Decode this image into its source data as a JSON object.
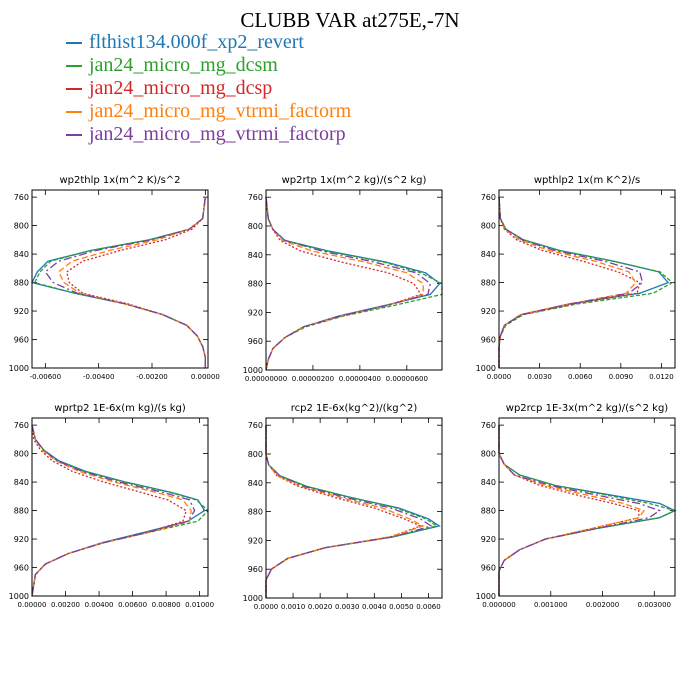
{
  "title": "CLUBB VAR at275E,-7N",
  "legend": [
    {
      "label": "flthist134.000f_xp2_revert",
      "color": "#1f77b4"
    },
    {
      "label": "jan24_micro_mg_dcsm",
      "color": "#2ca02c"
    },
    {
      "label": "jan24_micro_mg_dcsp",
      "color": "#d62728"
    },
    {
      "label": "jan24_micro_mg_vtrmi_factorm",
      "color": "#ff7f0e"
    },
    {
      "label": "jan24_micro_mg_vtrmi_factorp",
      "color": "#7b3f9e"
    }
  ],
  "chart_data": [
    {
      "type": "line",
      "title": "wp2thlp   1x(m^2 K)/s^2",
      "ylim": [
        1000,
        750
      ],
      "yticks": [
        760,
        800,
        840,
        880,
        920,
        960,
        1000
      ],
      "xlim": [
        -0.0065,
        0.0001
      ],
      "xticks": [
        -0.006,
        -0.004,
        -0.002,
        0.0
      ],
      "xtick_labels": [
        "-0.00600",
        "-0.00400",
        "-0.00200",
        "0.00000"
      ],
      "y": [
        760,
        790,
        805,
        820,
        835,
        850,
        865,
        880,
        895,
        910,
        925,
        940,
        955,
        970,
        985,
        1000
      ],
      "series": [
        {
          "name": "flthist134.000f_xp2_revert",
          "color": "#1f77b4",
          "dash": "",
          "values": [
            0.0,
            -0.0001,
            -0.0006,
            -0.0021,
            -0.0043,
            -0.0059,
            -0.0063,
            -0.0065,
            -0.0049,
            -0.003,
            -0.0016,
            -0.0007,
            -0.0003,
            -0.0001,
            0.0,
            0.0
          ]
        },
        {
          "name": "jan24_micro_mg_dcsm",
          "color": "#2ca02c",
          "dash": "4,2",
          "values": [
            0.0,
            -0.0001,
            -0.0006,
            -0.0021,
            -0.0043,
            -0.0058,
            -0.0062,
            -0.0064,
            -0.0049,
            -0.003,
            -0.0016,
            -0.0007,
            -0.0003,
            -0.0001,
            0.0,
            0.0
          ]
        },
        {
          "name": "jan24_micro_mg_dcsp",
          "color": "#d62728",
          "dash": "2,2",
          "values": [
            0.0,
            -0.0001,
            -0.0005,
            -0.0015,
            -0.0032,
            -0.0046,
            -0.0052,
            -0.0051,
            -0.0046,
            -0.0029,
            -0.0016,
            -0.0007,
            -0.0003,
            -0.0001,
            0.0,
            0.0
          ]
        },
        {
          "name": "jan24_micro_mg_vtrmi_factorm",
          "color": "#ff7f0e",
          "dash": "6,3",
          "values": [
            0.0,
            -0.0001,
            -0.0006,
            -0.0018,
            -0.0036,
            -0.005,
            -0.0055,
            -0.0053,
            -0.0047,
            -0.003,
            -0.0016,
            -0.0007,
            -0.0003,
            -0.0001,
            0.0,
            0.0
          ]
        },
        {
          "name": "jan24_micro_mg_vtrmi_factorp",
          "color": "#7b3f9e",
          "dash": "8,3,2,3",
          "values": [
            0.0,
            -0.0001,
            -0.0006,
            -0.002,
            -0.0041,
            -0.0055,
            -0.006,
            -0.0057,
            -0.0048,
            -0.003,
            -0.0016,
            -0.0007,
            -0.0003,
            -0.0001,
            0.0,
            0.0
          ]
        }
      ]
    },
    {
      "type": "line",
      "title": "wp2rtp   1x(m^2 kg)/(s^2 kg)",
      "ylim": [
        1000,
        750
      ],
      "yticks": [
        760,
        800,
        840,
        880,
        920,
        960,
        1000
      ],
      "xlim": [
        0.0,
        7.5e-06
      ],
      "xticks": [
        0.0,
        2e-06,
        4e-06,
        6e-06
      ],
      "xtick_labels": [
        "0.00000000",
        "0.00000200",
        "0.00000400",
        "0.00000600"
      ],
      "y": [
        760,
        790,
        805,
        820,
        835,
        850,
        865,
        880,
        895,
        910,
        925,
        940,
        955,
        970,
        985,
        1000
      ],
      "series": [
        {
          "name": "flthist134.000f_xp2_revert",
          "color": "#1f77b4",
          "dash": "",
          "values": [
            0.0,
            1e-07,
            3e-07,
            8e-07,
            2.7e-06,
            5.1e-06,
            6.8e-06,
            7.4e-06,
            7e-06,
            5.1e-06,
            3.1e-06,
            1.6e-06,
            8e-07,
            3e-07,
            1e-07,
            0.0
          ]
        },
        {
          "name": "jan24_micro_mg_dcsm",
          "color": "#2ca02c",
          "dash": "4,2",
          "values": [
            0.0,
            1e-07,
            3e-07,
            8e-07,
            2.6e-06,
            5e-06,
            6.6e-06,
            7.5e-06,
            7.5e-06,
            5.5e-06,
            3.3e-06,
            1.7e-06,
            8e-07,
            3e-07,
            1e-07,
            0.0
          ]
        },
        {
          "name": "jan24_micro_mg_dcsp",
          "color": "#d62728",
          "dash": "2,2",
          "values": [
            0.0,
            1e-07,
            3e-07,
            6e-07,
            1.5e-06,
            3.2e-06,
            5.2e-06,
            6.3e-06,
            6.6e-06,
            5.2e-06,
            3.2e-06,
            1.6e-06,
            8e-07,
            3e-07,
            1e-07,
            0.0
          ]
        },
        {
          "name": "jan24_micro_mg_vtrmi_factorm",
          "color": "#ff7f0e",
          "dash": "6,3",
          "values": [
            0.0,
            1e-07,
            3e-07,
            7e-07,
            2e-06,
            4.2e-06,
            6e-06,
            6.7e-06,
            6.7e-06,
            5.2e-06,
            3.2e-06,
            1.6e-06,
            8e-07,
            3e-07,
            1e-07,
            0.0
          ]
        },
        {
          "name": "jan24_micro_mg_vtrmi_factorp",
          "color": "#7b3f9e",
          "dash": "8,3,2,3",
          "values": [
            0.0,
            1e-07,
            3e-07,
            8e-07,
            2.4e-06,
            4.6e-06,
            6.4e-06,
            7e-06,
            6.9e-06,
            5.2e-06,
            3.2e-06,
            1.6e-06,
            8e-07,
            3e-07,
            1e-07,
            0.0
          ]
        }
      ]
    },
    {
      "type": "line",
      "title": "wpthlp2   1x(m K^2)/s",
      "ylim": [
        1000,
        750
      ],
      "yticks": [
        760,
        800,
        840,
        880,
        920,
        960,
        1000
      ],
      "xlim": [
        0.0,
        0.013
      ],
      "xticks": [
        0.0,
        0.003,
        0.006,
        0.009,
        0.012
      ],
      "xtick_labels": [
        "0.0000",
        "0.0030",
        "0.0060",
        "0.0090",
        "0.0120"
      ],
      "y": [
        760,
        790,
        805,
        820,
        835,
        850,
        865,
        880,
        895,
        910,
        925,
        940,
        955,
        970,
        985,
        1000
      ],
      "series": [
        {
          "name": "flthist134.000f_xp2_revert",
          "color": "#1f77b4",
          "dash": "",
          "values": [
            0.0,
            0.0001,
            0.0005,
            0.0018,
            0.0045,
            0.0085,
            0.0118,
            0.0125,
            0.0104,
            0.0052,
            0.0016,
            0.0004,
            0.0001,
            0.0,
            0.0,
            0.0
          ]
        },
        {
          "name": "jan24_micro_mg_dcsm",
          "color": "#2ca02c",
          "dash": "4,2",
          "values": [
            0.0,
            0.0001,
            0.0005,
            0.0018,
            0.0044,
            0.0084,
            0.0119,
            0.0128,
            0.0114,
            0.0058,
            0.0018,
            0.0005,
            0.0001,
            0.0,
            0.0,
            0.0
          ]
        },
        {
          "name": "jan24_micro_mg_dcsp",
          "color": "#d62728",
          "dash": "2,2",
          "values": [
            0.0,
            0.0001,
            0.0004,
            0.0013,
            0.0032,
            0.0062,
            0.0088,
            0.0104,
            0.0102,
            0.0055,
            0.0017,
            0.0004,
            0.0001,
            0.0,
            0.0,
            0.0
          ]
        },
        {
          "name": "jan24_micro_mg_vtrmi_factorm",
          "color": "#ff7f0e",
          "dash": "6,3",
          "values": [
            0.0,
            0.0001,
            0.0004,
            0.0015,
            0.0037,
            0.0071,
            0.0096,
            0.0101,
            0.0094,
            0.0052,
            0.0016,
            0.0004,
            0.0001,
            0.0,
            0.0,
            0.0
          ]
        },
        {
          "name": "jan24_micro_mg_vtrmi_factorp",
          "color": "#7b3f9e",
          "dash": "8,3,2,3",
          "values": [
            0.0,
            0.0001,
            0.0005,
            0.0017,
            0.0041,
            0.0078,
            0.0104,
            0.0106,
            0.0096,
            0.0053,
            0.0017,
            0.0004,
            0.0001,
            0.0,
            0.0,
            0.0
          ]
        }
      ]
    },
    {
      "type": "line",
      "title": "wprtp2   1E-6x(m kg)/(s kg)",
      "ylim": [
        1000,
        750
      ],
      "yticks": [
        760,
        800,
        840,
        880,
        920,
        960,
        1000
      ],
      "xlim": [
        0.0,
        0.0105
      ],
      "xticks": [
        0.0,
        0.002,
        0.004,
        0.006,
        0.008,
        0.01
      ],
      "xtick_labels": [
        "0.00000",
        "0.00200",
        "0.00400",
        "0.00600",
        "0.00800",
        "0.01000"
      ],
      "y": [
        760,
        780,
        795,
        810,
        825,
        840,
        855,
        865,
        880,
        895,
        910,
        925,
        940,
        955,
        970,
        985,
        1000
      ],
      "series": [
        {
          "name": "flthist134.000f_xp2_revert",
          "color": "#1f77b4",
          "dash": "",
          "values": [
            0.0,
            0.0002,
            0.0007,
            0.0016,
            0.0032,
            0.0056,
            0.0084,
            0.0099,
            0.0103,
            0.0093,
            0.0068,
            0.0042,
            0.0022,
            0.0008,
            0.0002,
            0.0001,
            0.0
          ]
        },
        {
          "name": "jan24_micro_mg_dcsm",
          "color": "#2ca02c",
          "dash": "4,2",
          "values": [
            0.0,
            0.0002,
            0.0007,
            0.0015,
            0.0031,
            0.0055,
            0.0083,
            0.0098,
            0.0105,
            0.0099,
            0.0071,
            0.0043,
            0.0022,
            0.0008,
            0.0002,
            0.0001,
            0.0
          ]
        },
        {
          "name": "jan24_micro_mg_dcsp",
          "color": "#d62728",
          "dash": "2,2",
          "values": [
            0.0,
            0.0001,
            0.0005,
            0.0012,
            0.0024,
            0.0043,
            0.0066,
            0.0081,
            0.0092,
            0.009,
            0.007,
            0.0043,
            0.0022,
            0.0008,
            0.0002,
            0.0001,
            0.0
          ]
        },
        {
          "name": "jan24_micro_mg_vtrmi_factorm",
          "color": "#ff7f0e",
          "dash": "6,3",
          "values": [
            0.0,
            0.0002,
            0.0006,
            0.0014,
            0.0028,
            0.0049,
            0.0075,
            0.009,
            0.0095,
            0.0094,
            0.0071,
            0.0043,
            0.0022,
            0.0008,
            0.0002,
            0.0001,
            0.0
          ]
        },
        {
          "name": "jan24_micro_mg_vtrmi_factorp",
          "color": "#7b3f9e",
          "dash": "8,3,2,3",
          "values": [
            0.0,
            0.0002,
            0.0007,
            0.0015,
            0.003,
            0.0052,
            0.0079,
            0.0094,
            0.0097,
            0.0093,
            0.007,
            0.0043,
            0.0022,
            0.0008,
            0.0002,
            0.0001,
            0.0
          ]
        }
      ]
    },
    {
      "type": "line",
      "title": "rcp2   1E-6x(kg^2)/(kg^2)",
      "ylim": [
        1000,
        750
      ],
      "yticks": [
        760,
        800,
        840,
        880,
        920,
        960,
        1000
      ],
      "xlim": [
        0.0,
        0.0065
      ],
      "xticks": [
        0.0,
        0.001,
        0.002,
        0.003,
        0.004,
        0.005,
        0.006
      ],
      "xtick_labels": [
        "0.0000",
        "0.0010",
        "0.0020",
        "0.0030",
        "0.0040",
        "0.0050",
        "0.0060"
      ],
      "y": [
        760,
        800,
        815,
        830,
        845,
        860,
        875,
        890,
        900,
        915,
        930,
        945,
        960,
        975,
        990,
        1000
      ],
      "series": [
        {
          "name": "flthist134.000f_xp2_revert",
          "color": "#1f77b4",
          "dash": "",
          "values": [
            0.0,
            0.0,
            0.0001,
            0.0005,
            0.0015,
            0.0031,
            0.0049,
            0.006,
            0.0064,
            0.0047,
            0.0022,
            0.0008,
            0.0002,
            0.0,
            0.0,
            0.0
          ]
        },
        {
          "name": "jan24_micro_mg_dcsm",
          "color": "#2ca02c",
          "dash": "4,2",
          "values": [
            0.0,
            0.0,
            0.0001,
            0.0005,
            0.0015,
            0.0031,
            0.0048,
            0.0059,
            0.0063,
            0.0047,
            0.0022,
            0.0008,
            0.0002,
            0.0,
            0.0,
            0.0
          ]
        },
        {
          "name": "jan24_micro_mg_dcsp",
          "color": "#d62728",
          "dash": "2,2",
          "values": [
            0.0,
            0.0,
            0.0001,
            0.0004,
            0.0012,
            0.0025,
            0.004,
            0.0051,
            0.0057,
            0.0046,
            0.0022,
            0.0008,
            0.0002,
            0.0,
            0.0,
            0.0
          ]
        },
        {
          "name": "jan24_micro_mg_vtrmi_factorm",
          "color": "#ff7f0e",
          "dash": "6,3",
          "values": [
            0.0,
            0.0,
            0.0001,
            0.0004,
            0.0013,
            0.0027,
            0.0043,
            0.0053,
            0.0058,
            0.0046,
            0.0022,
            0.0008,
            0.0002,
            0.0,
            0.0,
            0.0
          ]
        },
        {
          "name": "jan24_micro_mg_vtrmi_factorp",
          "color": "#7b3f9e",
          "dash": "8,3,2,3",
          "values": [
            0.0,
            0.0,
            0.0001,
            0.0005,
            0.0014,
            0.0029,
            0.0046,
            0.0057,
            0.0061,
            0.0047,
            0.0022,
            0.0008,
            0.0002,
            0.0,
            0.0,
            0.0
          ]
        }
      ]
    },
    {
      "type": "line",
      "title": "wp2rcp   1E-3x(m^2 kg)/(s^2 kg)",
      "ylim": [
        1000,
        750
      ],
      "yticks": [
        760,
        800,
        840,
        880,
        920,
        960,
        1000
      ],
      "xlim": [
        0.0,
        0.0034
      ],
      "xticks": [
        0.0,
        0.001,
        0.002,
        0.003
      ],
      "xtick_labels": [
        "0.000000",
        "0.001000",
        "0.002000",
        "0.003000"
      ],
      "y": [
        760,
        800,
        815,
        830,
        845,
        860,
        870,
        880,
        890,
        905,
        920,
        935,
        950,
        965,
        980,
        1000
      ],
      "series": [
        {
          "name": "flthist134.000f_xp2_revert",
          "color": "#1f77b4",
          "dash": "",
          "values": [
            0.0,
            0.0,
            0.0001,
            0.0004,
            0.0011,
            0.0023,
            0.0031,
            0.0034,
            0.0031,
            0.0019,
            0.0009,
            0.0004,
            0.0001,
            0.0,
            0.0,
            0.0
          ]
        },
        {
          "name": "jan24_micro_mg_dcsm",
          "color": "#2ca02c",
          "dash": "4,2",
          "values": [
            0.0,
            0.0,
            0.0001,
            0.0004,
            0.0011,
            0.0022,
            0.0029,
            0.0034,
            0.0031,
            0.0019,
            0.0009,
            0.0004,
            0.0001,
            0.0,
            0.0,
            0.0
          ]
        },
        {
          "name": "jan24_micro_mg_dcsp",
          "color": "#d62728",
          "dash": "2,2",
          "values": [
            0.0,
            0.0,
            0.0001,
            0.0003,
            0.0008,
            0.0016,
            0.0022,
            0.0027,
            0.0027,
            0.0018,
            0.0009,
            0.0004,
            0.0001,
            0.0,
            0.0,
            0.0
          ]
        },
        {
          "name": "jan24_micro_mg_vtrmi_factorm",
          "color": "#ff7f0e",
          "dash": "6,3",
          "values": [
            0.0,
            0.0,
            0.0001,
            0.0003,
            0.0009,
            0.0018,
            0.0024,
            0.0028,
            0.0027,
            0.0018,
            0.0009,
            0.0004,
            0.0001,
            0.0,
            0.0,
            0.0
          ]
        },
        {
          "name": "jan24_micro_mg_vtrmi_factorp",
          "color": "#7b3f9e",
          "dash": "8,3,2,3",
          "values": [
            0.0,
            0.0,
            0.0001,
            0.0003,
            0.001,
            0.002,
            0.0027,
            0.0031,
            0.0029,
            0.0019,
            0.0009,
            0.0004,
            0.0001,
            0.0,
            0.0,
            0.0
          ]
        }
      ]
    }
  ]
}
